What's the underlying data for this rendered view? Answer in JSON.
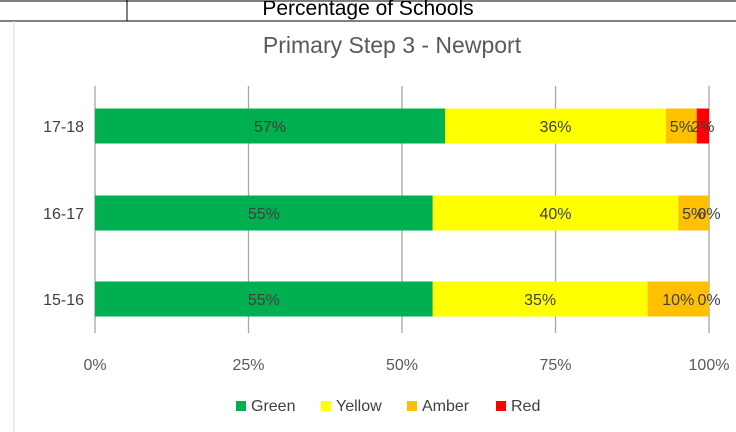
{
  "header": {
    "table_title": "Percentage of Schools"
  },
  "chart_data": {
    "type": "bar",
    "orientation": "horizontal",
    "stacked": true,
    "title": "Primary Step 3 - Newport",
    "categories": [
      "17-18",
      "16-17",
      "15-16"
    ],
    "series": [
      {
        "name": "Green",
        "color": "#00B050",
        "values": [
          57,
          55,
          55
        ],
        "labels": [
          "57%",
          "55%",
          "55%"
        ]
      },
      {
        "name": "Yellow",
        "color": "#FFFF00",
        "values": [
          36,
          40,
          35
        ],
        "labels": [
          "36%",
          "40%",
          "35%"
        ]
      },
      {
        "name": "Amber",
        "color": "#FFC000",
        "values": [
          5,
          5,
          10
        ],
        "labels": [
          "5%",
          "5%",
          "10%"
        ]
      },
      {
        "name": "Red",
        "color": "#FF0000",
        "values": [
          2,
          0,
          0
        ],
        "labels": [
          "2%",
          "0%",
          "0%"
        ]
      }
    ],
    "xlim": [
      0,
      100
    ],
    "x_ticks": [
      "0%",
      "25%",
      "50%",
      "75%",
      "100%"
    ],
    "grid": true,
    "legend_position": "bottom"
  }
}
